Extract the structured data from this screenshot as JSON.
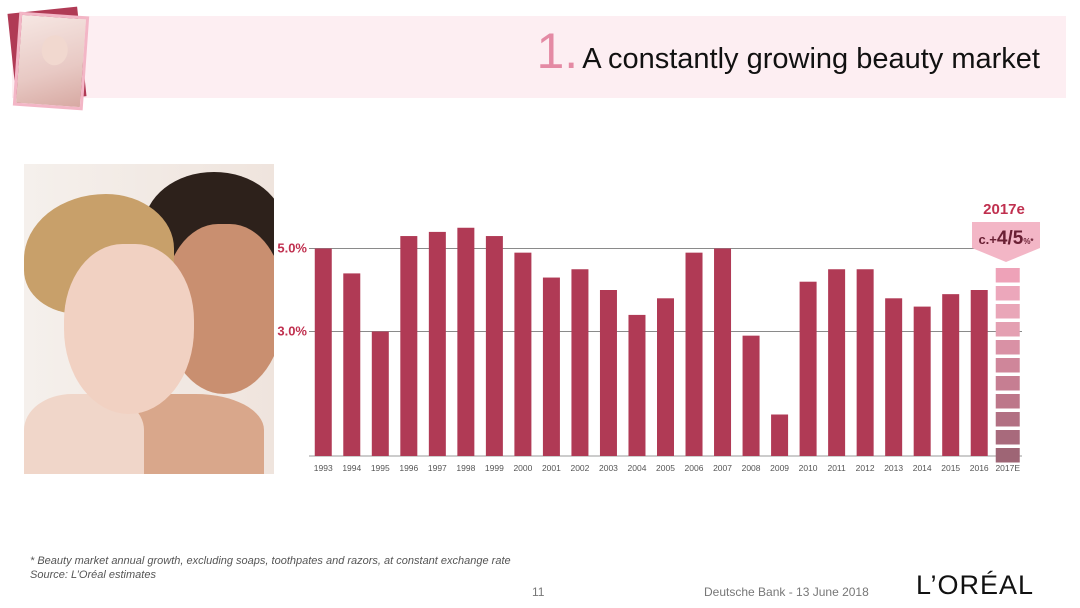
{
  "header": {
    "number": "1.",
    "title": "A constantly growing beauty market"
  },
  "footnote": {
    "line1": "* Beauty market annual growth, excluding soaps, toothpates and razors, at constant exchange rate",
    "line2": "Source: L’Oréal estimates"
  },
  "footer": {
    "page": "11",
    "event": "Deutsche Bank - 13 June 2018",
    "logo": "L’ORÉAL"
  },
  "colors": {
    "bar": "#b03a55",
    "label_red": "#c0304f",
    "header_band": "#fdeef2"
  },
  "chart_data": {
    "type": "bar",
    "categories": [
      "1993",
      "1994",
      "1995",
      "1996",
      "1997",
      "1998",
      "1999",
      "2000",
      "2001",
      "2002",
      "2003",
      "2004",
      "2005",
      "2006",
      "2007",
      "2008",
      "2009",
      "2010",
      "2011",
      "2012",
      "2013",
      "2014",
      "2015",
      "2016",
      "2017E"
    ],
    "values": [
      5.0,
      4.4,
      3.0,
      5.3,
      5.4,
      5.5,
      5.3,
      4.9,
      4.3,
      4.5,
      4.0,
      3.4,
      3.8,
      4.9,
      5.0,
      2.9,
      1.0,
      4.2,
      4.5,
      4.5,
      3.8,
      3.6,
      3.9,
      4.0,
      null
    ],
    "ylim": [
      0,
      5.7
    ],
    "ytick_labels": [
      {
        "value": 5.0,
        "label": "5.0%"
      },
      {
        "value": 3.0,
        "label": "3.0%"
      }
    ],
    "estimate": {
      "category": "2017E",
      "year_label": "2017e",
      "label_prefix": "c.+",
      "label_main": "4/5",
      "label_suffix": "%*",
      "range": [
        4,
        5
      ]
    },
    "grid": "horizontal lines at 5.0% and 3.0%",
    "legend": "none"
  }
}
